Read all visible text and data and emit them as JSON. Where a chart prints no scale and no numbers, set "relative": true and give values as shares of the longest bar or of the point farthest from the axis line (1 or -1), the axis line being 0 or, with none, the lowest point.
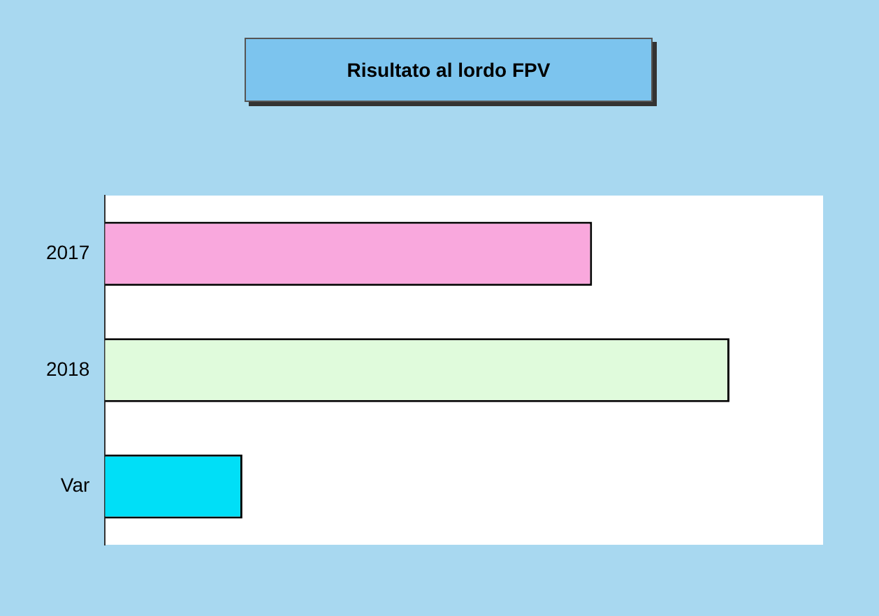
{
  "chart_data": {
    "type": "bar",
    "title": "Risultato al lordo FPV",
    "orientation": "horizontal",
    "relative": true,
    "categories": [
      "2017",
      "2018",
      "Var"
    ],
    "values": [
      0.78,
      1,
      0.22
    ],
    "colors": [
      "#f9a8dd",
      "#e0fbdc",
      "#00dff7"
    ]
  }
}
